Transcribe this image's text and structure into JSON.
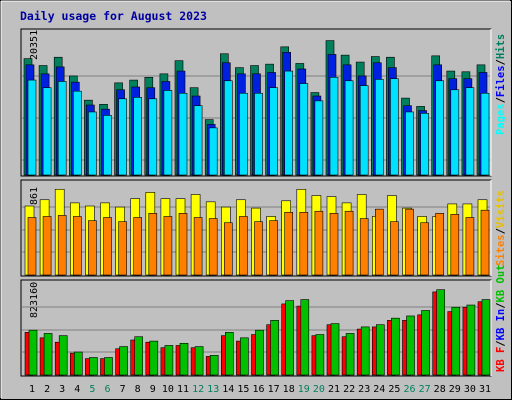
{
  "chart_data": [
    {
      "type": "bar",
      "title": "Daily usage for August 2023",
      "y_max_label": "20351",
      "ylim": [
        0,
        20351
      ],
      "categories": [
        "1",
        "2",
        "3",
        "4",
        "5",
        "6",
        "7",
        "8",
        "9",
        "10",
        "11",
        "12",
        "13",
        "14",
        "15",
        "16",
        "17",
        "18",
        "19",
        "20",
        "21",
        "22",
        "23",
        "24",
        "25",
        "26",
        "27",
        "28",
        "29",
        "30",
        "31"
      ],
      "weekend_days": [
        "5",
        "6",
        "12",
        "13",
        "19",
        "20",
        "26",
        "27"
      ],
      "legend": [
        "Pages",
        "Files",
        "Hits"
      ],
      "series": [
        {
          "name": "Hits",
          "color": "#00805c",
          "values": [
            16800,
            15800,
            17000,
            14300,
            10800,
            10200,
            13300,
            13700,
            14100,
            14600,
            16500,
            12600,
            8000,
            17500,
            15500,
            15800,
            16000,
            18500,
            16100,
            11900,
            19400,
            17300,
            16300,
            17100,
            17000,
            11100,
            9900,
            17200,
            15000,
            14900,
            15900
          ]
        },
        {
          "name": "Files",
          "color": "#0020e0",
          "values": [
            15900,
            14600,
            15600,
            13400,
            10100,
            9500,
            12300,
            12700,
            12600,
            13500,
            15000,
            11400,
            7300,
            16200,
            14600,
            14600,
            14800,
            17700,
            15300,
            11400,
            17400,
            15900,
            14300,
            16200,
            15500,
            10000,
            9300,
            15900,
            13900,
            13900,
            14800
          ]
        },
        {
          "name": "Pages",
          "color": "#00e0ff",
          "values": [
            13700,
            12600,
            13500,
            12100,
            9100,
            8600,
            11000,
            11200,
            11000,
            12200,
            11800,
            10000,
            6800,
            13600,
            11800,
            11800,
            12600,
            15000,
            13200,
            10700,
            14100,
            13600,
            12900,
            13800,
            13900,
            9100,
            8900,
            13600,
            12300,
            12600,
            11800
          ]
        }
      ]
    },
    {
      "type": "bar",
      "y_max_label": "861",
      "ylim": [
        0,
        861
      ],
      "categories": [
        "1",
        "2",
        "3",
        "4",
        "5",
        "6",
        "7",
        "8",
        "9",
        "10",
        "11",
        "12",
        "13",
        "14",
        "15",
        "16",
        "17",
        "18",
        "19",
        "20",
        "21",
        "22",
        "23",
        "24",
        "25",
        "26",
        "27",
        "28",
        "29",
        "30",
        "31"
      ],
      "legend": [
        "Sites",
        "Visits"
      ],
      "series": [
        {
          "name": "Visits",
          "color": "#ffff00",
          "values": [
            660,
            720,
            820,
            690,
            660,
            690,
            650,
            730,
            790,
            730,
            730,
            770,
            700,
            650,
            720,
            640,
            560,
            710,
            820,
            760,
            750,
            690,
            770,
            560,
            760,
            640,
            560,
            560,
            680,
            680,
            720
          ]
        },
        {
          "name": "Sites",
          "color": "#ff8000",
          "values": [
            550,
            560,
            570,
            560,
            520,
            550,
            510,
            550,
            590,
            560,
            590,
            550,
            540,
            500,
            560,
            510,
            520,
            600,
            600,
            610,
            590,
            610,
            540,
            630,
            510,
            630,
            500,
            590,
            580,
            550,
            620
          ]
        }
      ]
    },
    {
      "type": "bar",
      "y_max_label": "823160",
      "ylim": [
        0,
        823160
      ],
      "categories": [
        "1",
        "2",
        "3",
        "4",
        "5",
        "6",
        "7",
        "8",
        "9",
        "10",
        "11",
        "12",
        "13",
        "14",
        "15",
        "16",
        "17",
        "18",
        "19",
        "20",
        "21",
        "22",
        "23",
        "24",
        "25",
        "26",
        "27",
        "28",
        "29",
        "30",
        "31"
      ],
      "legend": [
        "KB F",
        "KB In",
        "KB Out"
      ],
      "series": [
        {
          "name": "KB F",
          "color": "#ff0000",
          "values": [
            0,
            0,
            0,
            0,
            0,
            0,
            0,
            0,
            0,
            0,
            0,
            0,
            0,
            0,
            0,
            0,
            0,
            0,
            0,
            0,
            0,
            0,
            0,
            0,
            0,
            0,
            0,
            0,
            0,
            0,
            0
          ]
        },
        {
          "name": "KB In",
          "color": "#0000ff",
          "values": [
            0,
            0,
            0,
            0,
            0,
            0,
            0,
            0,
            0,
            0,
            0,
            0,
            0,
            0,
            0,
            0,
            0,
            0,
            0,
            0,
            0,
            0,
            0,
            0,
            0,
            0,
            0,
            0,
            0,
            0,
            0
          ]
        },
        {
          "name": "KB Out",
          "color": "#00c000",
          "values": [
            410000,
            380000,
            360000,
            210000,
            160000,
            160000,
            260000,
            350000,
            310000,
            270000,
            290000,
            260000,
            180000,
            390000,
            340000,
            410000,
            500000,
            680000,
            690000,
            370000,
            470000,
            380000,
            440000,
            460000,
            520000,
            540000,
            590000,
            780000,
            620000,
            640000,
            690000
          ]
        },
        {
          "name": "KB F",
          "color": "#ff0000",
          "values": [
            390000,
            340000,
            300000,
            200000,
            150000,
            150000,
            240000,
            320000,
            300000,
            250000,
            270000,
            250000,
            170000,
            360000,
            310000,
            370000,
            460000,
            650000,
            630000,
            360000,
            460000,
            350000,
            420000,
            440000,
            500000,
            500000,
            550000,
            760000,
            580000,
            620000,
            670000
          ]
        }
      ]
    }
  ],
  "legend_labels": {
    "top": [
      {
        "text": "Pages",
        "color": "#00ffff"
      },
      {
        "text": "Files",
        "color": "#0000ff"
      },
      {
        "text": "Hits",
        "color": "#008060"
      }
    ],
    "mid": [
      {
        "text": "Sites",
        "color": "#ff8000"
      },
      {
        "text": "Visits",
        "color": "#e8c000"
      }
    ],
    "bottom": [
      {
        "text": "KB F",
        "color": "#ff0000"
      },
      {
        "text": "KB In",
        "color": "#0000ff"
      },
      {
        "text": "KB Out",
        "color": "#00c000"
      }
    ]
  },
  "separator": "/",
  "x_label_colors": {
    "weekday": "#000000",
    "weekend": "#00805c"
  }
}
